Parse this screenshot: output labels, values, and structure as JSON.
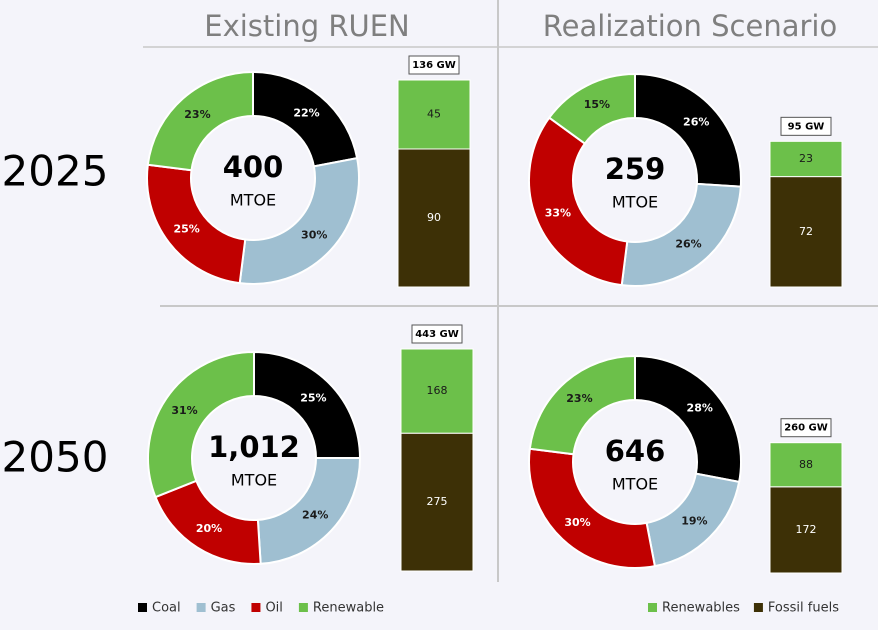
{
  "columns": [
    "Existing RUEN",
    "Realization Scenario"
  ],
  "rows": [
    "2025",
    "2050"
  ],
  "legends": {
    "mix": [
      {
        "name": "Coal",
        "color": "#000000"
      },
      {
        "name": "Gas",
        "color": "#9fbfd1"
      },
      {
        "name": "Oil",
        "color": "#c00000"
      },
      {
        "name": "Renewable",
        "color": "#6cc04a"
      }
    ],
    "capacity": [
      {
        "name": "Renewables",
        "color": "#6cc04a"
      },
      {
        "name": "Fossil fuels",
        "color": "#3d3006"
      }
    ]
  },
  "chart_data": [
    {
      "type": "pie",
      "center_value": "400",
      "center_unit": "MTOE",
      "values": [
        22,
        30,
        25,
        23
      ],
      "value_labels": [
        "22%",
        "30%",
        "25%",
        "23%"
      ]
    },
    {
      "type": "bar",
      "total_label": "136 GW",
      "ylim": [
        0,
        135
      ],
      "series": [
        {
          "values": [
            45
          ]
        },
        {
          "values": [
            90
          ]
        }
      ]
    },
    {
      "type": "pie",
      "center_value": "259",
      "center_unit": "MTOE",
      "values": [
        26,
        26,
        33,
        15
      ],
      "value_labels": [
        "26%",
        "26%",
        "33%",
        "15%"
      ]
    },
    {
      "type": "bar",
      "total_label": "95 GW",
      "ylim": [
        0,
        135
      ],
      "series": [
        {
          "values": [
            23
          ]
        },
        {
          "values": [
            72
          ]
        }
      ]
    },
    {
      "type": "pie",
      "center_value": "1,012",
      "center_unit": "MTOE",
      "values": [
        25,
        24,
        20,
        31
      ],
      "value_labels": [
        "25%",
        "24%",
        "20%",
        "31%"
      ]
    },
    {
      "type": "bar",
      "total_label": "443 GW",
      "ylim": [
        0,
        443
      ],
      "series": [
        {
          "values": [
            168
          ]
        },
        {
          "values": [
            275
          ]
        }
      ]
    },
    {
      "type": "pie",
      "center_value": "646",
      "center_unit": "MTOE",
      "values": [
        28,
        19,
        30,
        23
      ],
      "value_labels": [
        "28%",
        "19%",
        "30%",
        "23%"
      ]
    },
    {
      "type": "bar",
      "total_label": "260 GW",
      "ylim": [
        0,
        443
      ],
      "series": [
        {
          "values": [
            88
          ]
        },
        {
          "values": [
            172
          ]
        }
      ]
    }
  ]
}
